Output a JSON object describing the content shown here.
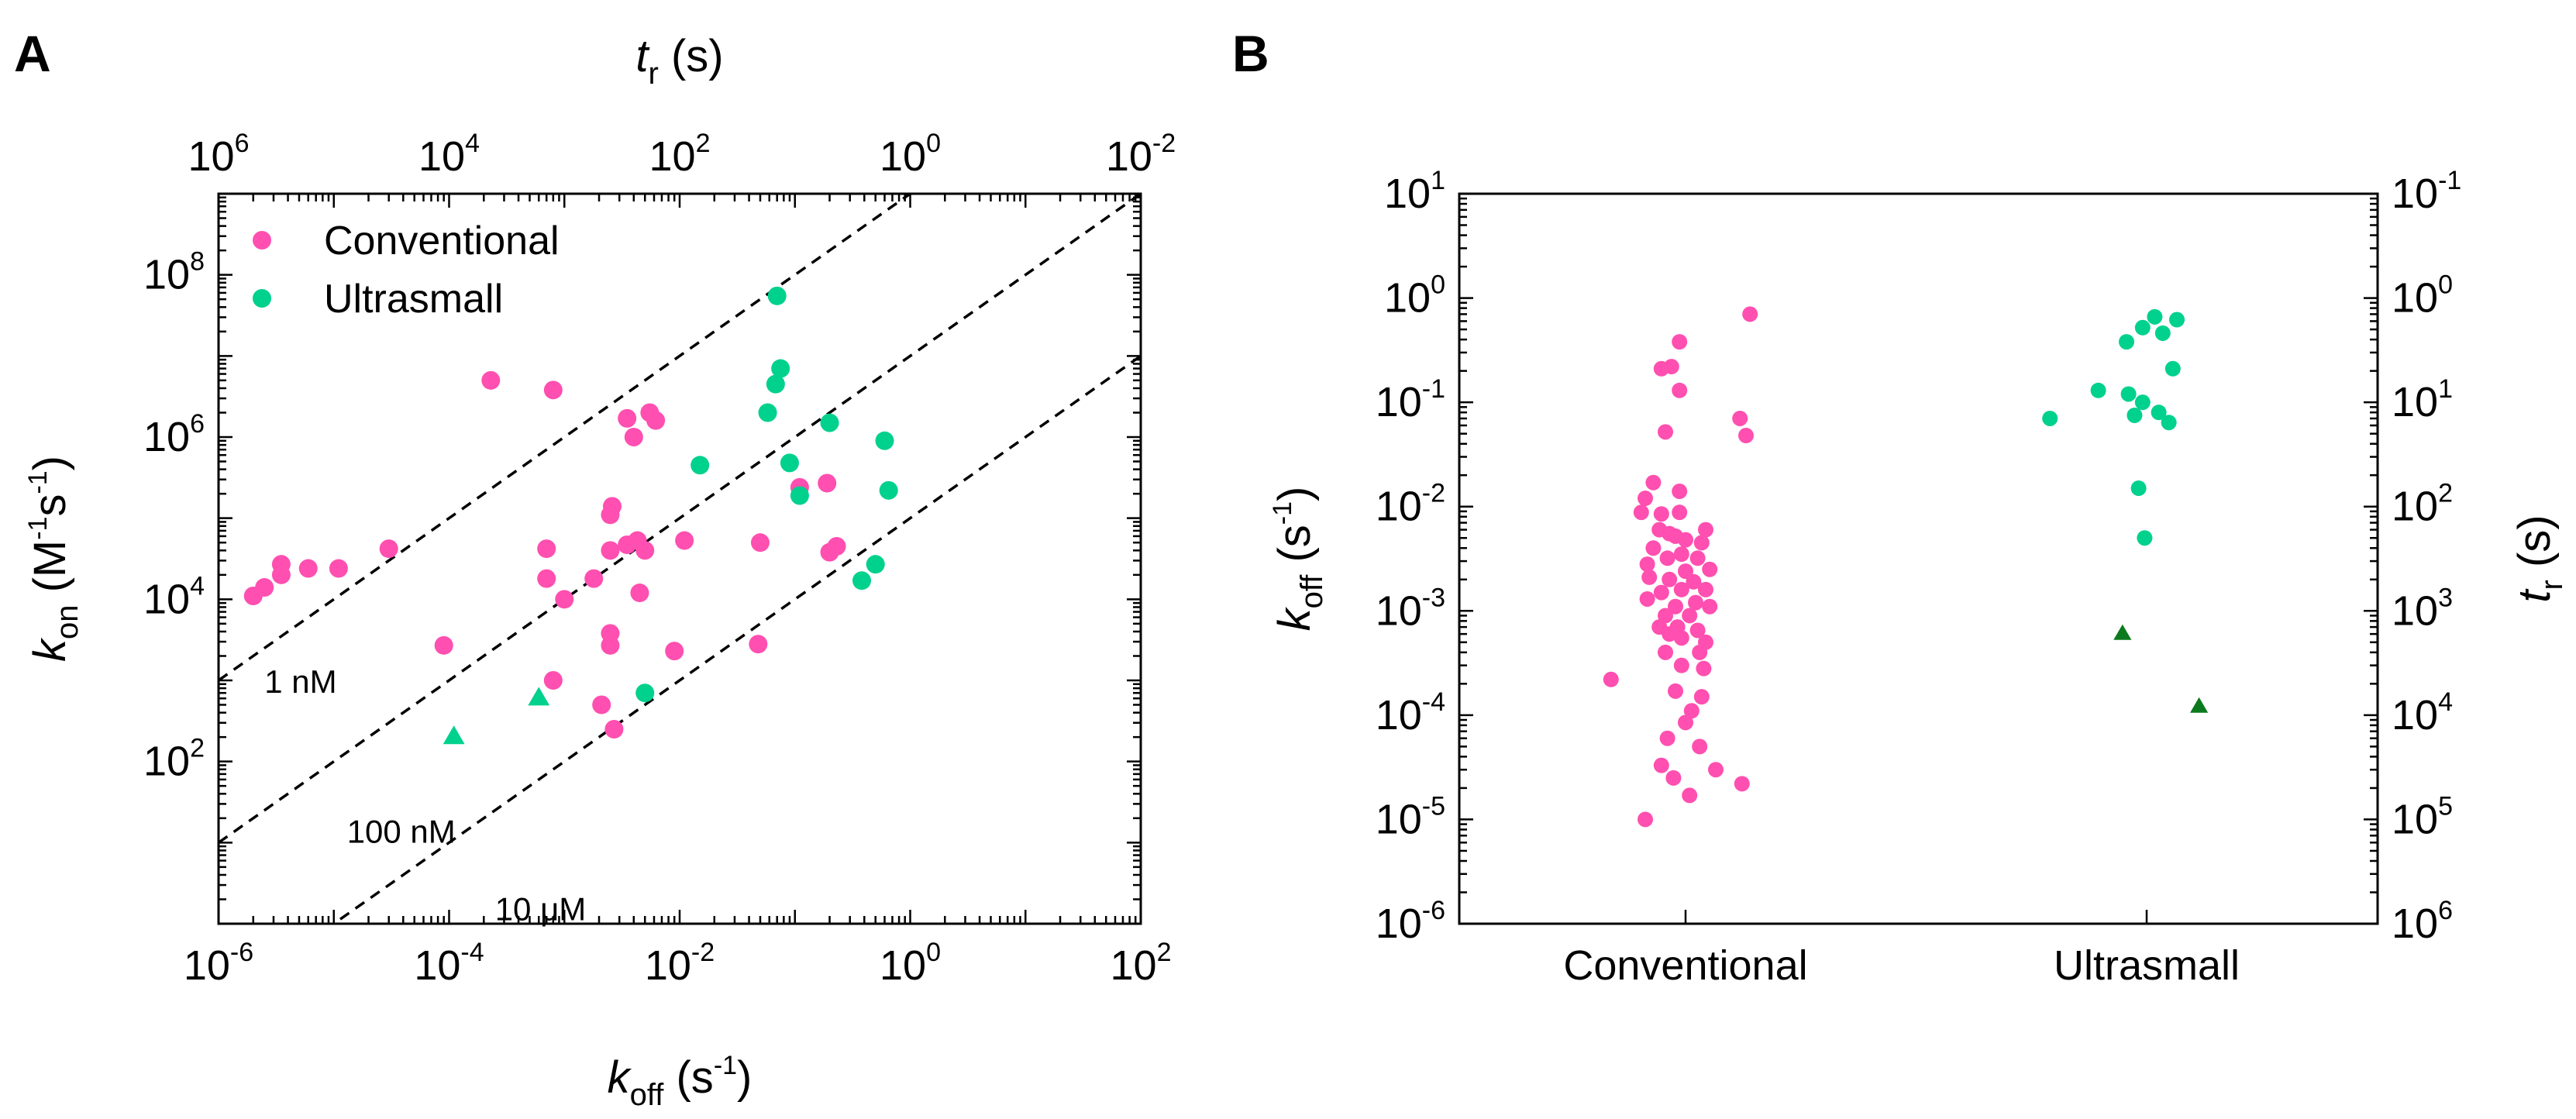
{
  "colors": {
    "conventional": "#ff4fb0",
    "ultrasmall": "#00d18d",
    "ultrasmall_tri_b": "#0b7a1e"
  },
  "panels": {
    "a_label": "A",
    "b_label": "B"
  },
  "chart_data": [
    {
      "id": "A",
      "type": "scatter",
      "log_x": true,
      "log_y": true,
      "xlim": [
        1e-06,
        100
      ],
      "ylim": [
        1,
        1000000000.0
      ],
      "x_ticks": [
        {
          "v": 1e-06,
          "base": "10",
          "exp": "-6"
        },
        {
          "v": 0.0001,
          "base": "10",
          "exp": "-4"
        },
        {
          "v": 0.01,
          "base": "10",
          "exp": "-2"
        },
        {
          "v": 1,
          "base": "10",
          "exp": "0"
        },
        {
          "v": 100,
          "base": "10",
          "exp": "2"
        }
      ],
      "y_ticks": [
        {
          "v": 100,
          "base": "10",
          "exp": "2"
        },
        {
          "v": 10000.0,
          "base": "10",
          "exp": "4"
        },
        {
          "v": 1000000.0,
          "base": "10",
          "exp": "6"
        },
        {
          "v": 100000000.0,
          "base": "10",
          "exp": "8"
        }
      ],
      "top_ticks": [
        {
          "v": 1e-06,
          "base": "10",
          "exp": "6"
        },
        {
          "v": 0.0001,
          "base": "10",
          "exp": "4"
        },
        {
          "v": 0.01,
          "base": "10",
          "exp": "2"
        },
        {
          "v": 1,
          "base": "10",
          "exp": "0"
        },
        {
          "v": 100,
          "base": "10",
          "exp": "-2"
        }
      ],
      "xlabel": {
        "main": "k",
        "sub": "off",
        "unit_open": " (s",
        "unit_exp": "-1",
        "unit_close": ")"
      },
      "ylabel": {
        "main": "k",
        "sub": "on",
        "unit_open": " (M",
        "unit_exp1": "-1",
        "unit_mid": "s",
        "unit_exp2": "-1",
        "unit_close": ")"
      },
      "toplabel": {
        "main": "t",
        "sub": "r",
        "unit": " (s)"
      },
      "legend": [
        {
          "name": "Conventional",
          "color": "#ff4fb0"
        },
        {
          "name": "Ultrasmall",
          "color": "#00d18d"
        }
      ],
      "iso_lines": [
        {
          "kd": 1e-09,
          "label": "1 nM",
          "lx": 2.5e-06,
          "ly": 700
        },
        {
          "kd": 1e-07,
          "label": "100 nM",
          "lx": 1.3e-05,
          "ly": 10
        },
        {
          "kd": 1e-05,
          "label": "10 μM",
          "lx": 0.00025,
          "ly": 1.1
        }
      ],
      "series": [
        {
          "name": "Conventional",
          "marker": "circle",
          "color": "#ff4fb0",
          "points": [
            [
              0.00023,
              5000000.0
            ],
            [
              0.0008,
              3800000.0
            ],
            [
              0.0035,
              1700000.0
            ],
            [
              0.004,
              1000000.0
            ],
            [
              0.0055,
              2000000.0
            ],
            [
              0.0062,
              1600000.0
            ],
            [
              2e-06,
              11000
            ],
            [
              2.5e-06,
              14000
            ],
            [
              3.5e-06,
              20000
            ],
            [
              3.5e-06,
              27000
            ],
            [
              6e-06,
              24000
            ],
            [
              1.1e-05,
              24000
            ],
            [
              3e-05,
              42000
            ],
            [
              0.0007,
              42000
            ],
            [
              0.0007,
              18000
            ],
            [
              0.001,
              10000
            ],
            [
              0.0018,
              18000
            ],
            [
              0.0025,
              40000
            ],
            [
              0.0025,
              110000
            ],
            [
              0.0026,
              140000
            ],
            [
              0.0035,
              47000
            ],
            [
              0.0043,
              53000
            ],
            [
              0.005,
              40000
            ],
            [
              0.0045,
              12000
            ],
            [
              0.011,
              53000
            ],
            [
              0.05,
              50000
            ],
            [
              0.11,
              240000
            ],
            [
              0.19,
              270000
            ],
            [
              0.2,
              38000
            ],
            [
              0.23,
              45000
            ],
            [
              9e-05,
              2700
            ],
            [
              0.0008,
              1000
            ],
            [
              0.0025,
              2700
            ],
            [
              0.0025,
              3800
            ],
            [
              0.0021,
              500
            ],
            [
              0.0027,
              250
            ],
            [
              0.009,
              2300
            ],
            [
              0.048,
              2800
            ]
          ]
        },
        {
          "name": "Ultrasmall",
          "marker": "circle",
          "color": "#00d18d",
          "points": [
            [
              0.07,
              55000000.0
            ],
            [
              0.075,
              7000000.0
            ],
            [
              0.068,
              4500000.0
            ],
            [
              0.058,
              2000000.0
            ],
            [
              0.2,
              1500000.0
            ],
            [
              0.6,
              900000
            ],
            [
              0.015,
              450000
            ],
            [
              0.09,
              480000
            ],
            [
              0.11,
              190000
            ],
            [
              0.65,
              220000
            ],
            [
              0.5,
              27000
            ],
            [
              0.38,
              17000
            ],
            [
              0.005,
              700
            ]
          ]
        },
        {
          "name": "Ultrasmall",
          "marker": "triangle",
          "color": "#00d18d",
          "points": [
            [
              0.00011,
              200
            ],
            [
              0.0006,
              600
            ]
          ]
        }
      ]
    },
    {
      "id": "B",
      "type": "scatter",
      "log_y": true,
      "ylim": [
        1e-06,
        10
      ],
      "categories": [
        "Conventional",
        "Ultrasmall"
      ],
      "y_ticks": [
        {
          "v": 1e-06,
          "base": "10",
          "exp": "-6"
        },
        {
          "v": 1e-05,
          "base": "10",
          "exp": "-5"
        },
        {
          "v": 0.0001,
          "base": "10",
          "exp": "-4"
        },
        {
          "v": 0.001,
          "base": "10",
          "exp": "-3"
        },
        {
          "v": 0.01,
          "base": "10",
          "exp": "-2"
        },
        {
          "v": 0.1,
          "base": "10",
          "exp": "-1"
        },
        {
          "v": 1,
          "base": "10",
          "exp": "0"
        },
        {
          "v": 10,
          "base": "10",
          "exp": "1"
        }
      ],
      "right_ticks": [
        {
          "v": 1e-06,
          "base": "10",
          "exp": "6"
        },
        {
          "v": 1e-05,
          "base": "10",
          "exp": "5"
        },
        {
          "v": 0.0001,
          "base": "10",
          "exp": "4"
        },
        {
          "v": 0.001,
          "base": "10",
          "exp": "3"
        },
        {
          "v": 0.01,
          "base": "10",
          "exp": "2"
        },
        {
          "v": 0.1,
          "base": "10",
          "exp": "1"
        },
        {
          "v": 1,
          "base": "10",
          "exp": "0"
        },
        {
          "v": 10,
          "base": "10",
          "exp": "-1"
        }
      ],
      "ylabel": {
        "main": "k",
        "sub": "off",
        "unit_open": " (s",
        "unit_exp": "-1",
        "unit_close": ")"
      },
      "rlabel": {
        "main": "t",
        "sub": "r",
        "unit": " (s)"
      },
      "series": [
        {
          "name": "Conventional",
          "marker": "circle",
          "color": "#ff4fb0",
          "category": 0,
          "points": [
            [
              0.32,
              0.7
            ],
            [
              -0.03,
              0.38
            ],
            [
              -0.07,
              0.22
            ],
            [
              -0.12,
              0.21
            ],
            [
              -0.03,
              0.13
            ],
            [
              0.27,
              0.07
            ],
            [
              0.3,
              0.048
            ],
            [
              -0.1,
              0.052
            ],
            [
              -0.16,
              0.017
            ],
            [
              -0.2,
              0.012
            ],
            [
              -0.03,
              0.014
            ],
            [
              -0.12,
              0.0085
            ],
            [
              -0.22,
              0.0088
            ],
            [
              -0.03,
              0.0088
            ],
            [
              -0.13,
              0.006
            ],
            [
              -0.08,
              0.0055
            ],
            [
              0.1,
              0.006
            ],
            [
              0.08,
              0.0045
            ],
            [
              0.0,
              0.0048
            ],
            [
              -0.05,
              0.0052
            ],
            [
              -0.16,
              0.004
            ],
            [
              -0.02,
              0.0035
            ],
            [
              0.06,
              0.0032
            ],
            [
              -0.09,
              0.0032
            ],
            [
              -0.19,
              0.0028
            ],
            [
              0.12,
              0.0025
            ],
            [
              0.0,
              0.0024
            ],
            [
              -0.08,
              0.002
            ],
            [
              -0.18,
              0.0021
            ],
            [
              0.04,
              0.0019
            ],
            [
              0.1,
              0.0016
            ],
            [
              -0.02,
              0.0016
            ],
            [
              -0.12,
              0.0015
            ],
            [
              -0.19,
              0.0013
            ],
            [
              0.05,
              0.0012
            ],
            [
              -0.05,
              0.0011
            ],
            [
              0.12,
              0.0011
            ],
            [
              -0.1,
              0.0009
            ],
            [
              0.02,
              0.0009
            ],
            [
              -0.04,
              0.0007
            ],
            [
              -0.13,
              0.0007
            ],
            [
              0.06,
              0.00065
            ],
            [
              -0.08,
              0.0006
            ],
            [
              0.1,
              0.0005
            ],
            [
              -0.02,
              0.00055
            ],
            [
              -0.1,
              0.0004
            ],
            [
              0.07,
              0.0004
            ],
            [
              0.09,
              0.00028
            ],
            [
              -0.02,
              0.0003
            ],
            [
              -0.37,
              0.00022
            ],
            [
              -0.05,
              0.00017
            ],
            [
              0.08,
              0.00015
            ],
            [
              0.03,
              0.00011
            ],
            [
              0.0,
              8.5e-05
            ],
            [
              -0.09,
              6e-05
            ],
            [
              0.07,
              5e-05
            ],
            [
              -0.12,
              3.3e-05
            ],
            [
              0.15,
              3e-05
            ],
            [
              -0.06,
              2.5e-05
            ],
            [
              0.28,
              2.2e-05
            ],
            [
              0.02,
              1.7e-05
            ],
            [
              -0.2,
              1e-05
            ]
          ]
        },
        {
          "name": "Ultrasmall",
          "marker": "circle",
          "color": "#00d18d",
          "category": 1,
          "points": [
            [
              0.04,
              0.66
            ],
            [
              0.15,
              0.62
            ],
            [
              -0.02,
              0.52
            ],
            [
              0.08,
              0.46
            ],
            [
              -0.1,
              0.38
            ],
            [
              0.13,
              0.21
            ],
            [
              -0.24,
              0.13
            ],
            [
              -0.09,
              0.12
            ],
            [
              -0.02,
              0.1
            ],
            [
              0.06,
              0.08
            ],
            [
              -0.06,
              0.075
            ],
            [
              -0.48,
              0.07
            ],
            [
              0.11,
              0.064
            ],
            [
              -0.04,
              0.015
            ],
            [
              -0.01,
              0.005
            ]
          ]
        },
        {
          "name": "Ultrasmall",
          "marker": "triangle",
          "color": "#0b7a1e",
          "category": 1,
          "points": [
            [
              -0.12,
              0.0006
            ],
            [
              0.26,
              0.00012
            ]
          ]
        }
      ]
    }
  ]
}
